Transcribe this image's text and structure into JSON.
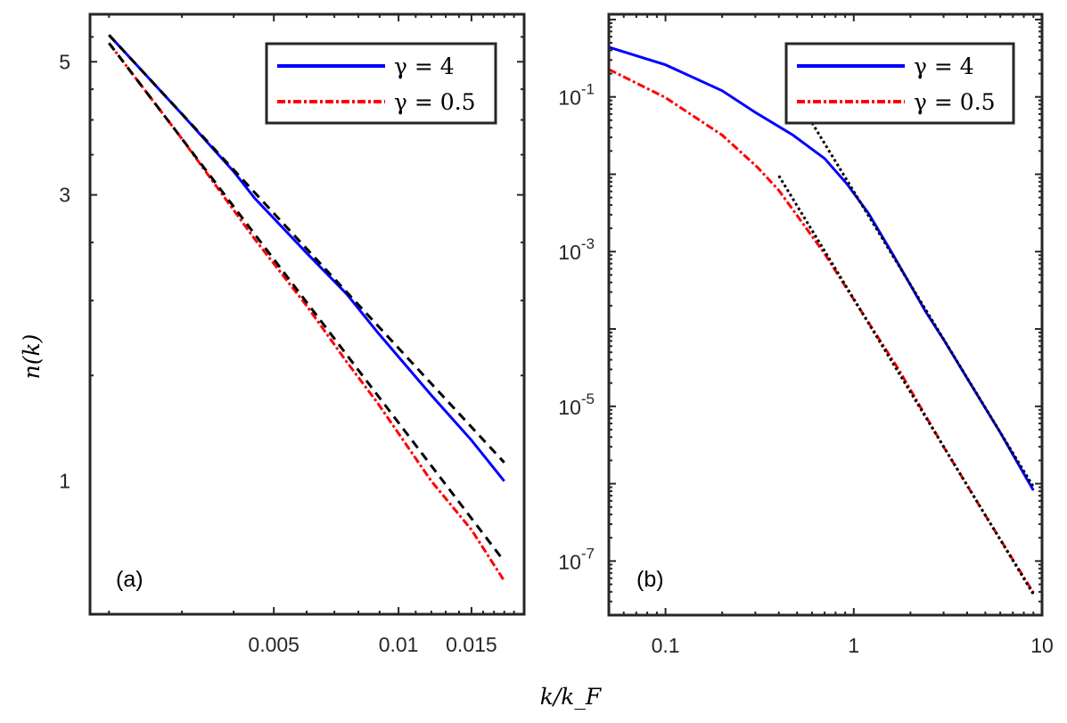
{
  "figure": {
    "xlabel": "k/k_F",
    "ylabel": "n(k)"
  },
  "chart_data": [
    {
      "type": "line",
      "panel_label": "(a)",
      "xscale": "log",
      "yscale": "log",
      "xlim": [
        0.0018,
        0.0201
      ],
      "ylim": [
        0.6,
        6.0
      ],
      "xticks": [
        {
          "value": 0.005,
          "label": "0.005"
        },
        {
          "value": 0.01,
          "label": "0.01"
        },
        {
          "value": 0.015,
          "label": "0.015"
        }
      ],
      "yticks": [
        {
          "value": 1,
          "label": "1"
        },
        {
          "value": 3,
          "label": "3"
        },
        {
          "value": 5,
          "label": "5"
        }
      ],
      "legend": {
        "position": "top-right",
        "entries": [
          "γ = 4",
          "γ = 0.5"
        ]
      },
      "grid": false,
      "series": [
        {
          "name": "γ = 4",
          "color": "#0000ff",
          "style": "solid",
          "x": [
            0.002,
            0.003,
            0.004,
            0.0045,
            0.006,
            0.0075,
            0.0089,
            0.012,
            0.015,
            0.018
          ],
          "y": [
            5.54,
            4.09,
            3.28,
            2.96,
            2.4,
            2.05,
            1.77,
            1.39,
            1.17,
            1.0
          ]
        },
        {
          "name": "γ = 0.5",
          "color": "#ff0000",
          "style": "dash-dot",
          "x": [
            0.002,
            0.003,
            0.0045,
            0.006,
            0.0075,
            0.0089,
            0.012,
            0.015,
            0.018
          ],
          "y": [
            5.37,
            3.72,
            2.53,
            1.96,
            1.58,
            1.35,
            1.0,
            0.83,
            0.682
          ]
        },
        {
          "color": "#000000",
          "style": "dashed",
          "x": [
            0.002,
            0.018
          ],
          "y": [
            5.54,
            1.074
          ]
        },
        {
          "color": "#000000",
          "style": "dashed",
          "x": [
            0.002,
            0.018
          ],
          "y": [
            5.37,
            0.735
          ]
        }
      ]
    },
    {
      "type": "line",
      "panel_label": "(b)",
      "xscale": "log",
      "yscale": "log",
      "xlim": [
        0.05,
        10
      ],
      "ylim": [
        2e-08,
        1.17
      ],
      "xticks": [
        {
          "value": 0.1,
          "label": "0.1"
        },
        {
          "value": 1,
          "label": "1"
        },
        {
          "value": 10,
          "label": "10"
        }
      ],
      "yticks": [
        {
          "value": 0.1,
          "base": "10",
          "exp": "-1"
        },
        {
          "value": 0.001,
          "base": "10",
          "exp": "-3"
        },
        {
          "value": 1e-05,
          "base": "10",
          "exp": "-5"
        },
        {
          "value": 1e-07,
          "base": "10",
          "exp": "-7"
        }
      ],
      "legend": {
        "position": "top-right",
        "entries": [
          "γ = 4",
          "γ = 0.5"
        ]
      },
      "grid": false,
      "series": [
        {
          "name": "γ = 4",
          "color": "#0000ff",
          "style": "solid",
          "x": [
            0.05,
            0.1,
            0.2,
            0.3,
            0.476,
            0.7,
            0.92,
            1.2,
            1.6,
            2.0,
            2.4,
            3,
            4,
            6,
            9
          ],
          "y": [
            0.44,
            0.26,
            0.12,
            0.063,
            0.032,
            0.016,
            0.0075,
            0.0031,
            0.00095,
            0.00037,
            0.00017,
            7.3e-05,
            2.3e-05,
            4.6e-06,
            8.2e-07
          ]
        },
        {
          "name": "γ = 0.5",
          "color": "#ff0000",
          "style": "dash-dot",
          "x": [
            0.05,
            0.1,
            0.2,
            0.308,
            0.4,
            0.531,
            0.7,
            1,
            1.73,
            3,
            5,
            9
          ],
          "y": [
            0.227,
            0.098,
            0.032,
            0.0123,
            0.0062,
            0.0024,
            0.00094,
            0.00024,
            3e-05,
            3e-06,
            3.9e-07,
            3.9e-08
          ]
        },
        {
          "color": "#000000",
          "style": "dotted",
          "x": [
            0.6,
            9.0
          ],
          "y": [
            0.0463,
            9.1e-07
          ]
        },
        {
          "color": "#000000",
          "style": "dotted",
          "x": [
            0.4,
            9.0
          ],
          "y": [
            0.00957,
            3.73e-08
          ]
        }
      ]
    }
  ]
}
